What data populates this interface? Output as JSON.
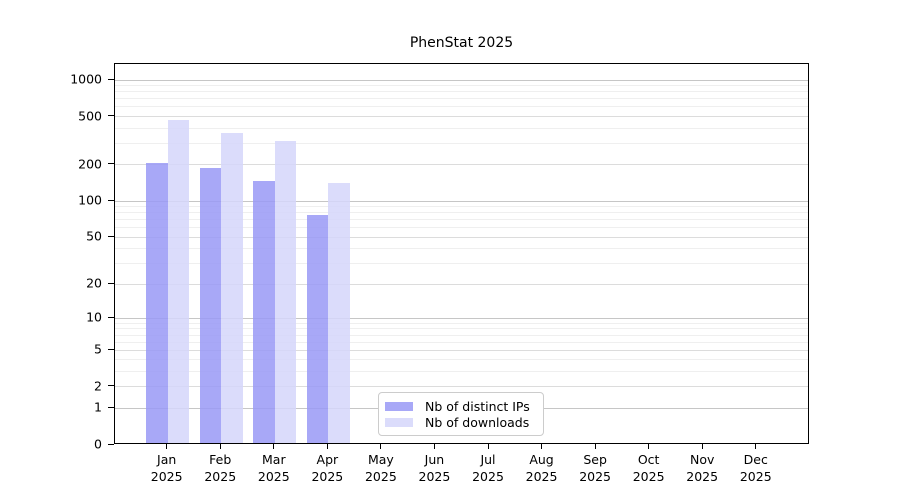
{
  "chart_data": {
    "type": "bar",
    "title": "PhenStat 2025",
    "year_label": "2025",
    "months": [
      "Jan",
      "Feb",
      "Mar",
      "Apr",
      "May",
      "Jun",
      "Jul",
      "Aug",
      "Sep",
      "Oct",
      "Nov",
      "Dec"
    ],
    "y_scale": "log10(value+1)",
    "y_ticks": [
      0,
      1,
      2,
      5,
      10,
      20,
      50,
      100,
      200,
      500,
      1000
    ],
    "y_max": 1355,
    "grid": "horizontal-only",
    "legend_position": "bottom-center",
    "series": [
      {
        "key": "distinct-ips",
        "name": "Nb of distinct IPs",
        "color": "rgba(153,153,246,0.85)",
        "values": [
          200,
          180,
          142,
          74,
          null,
          null,
          null,
          null,
          null,
          null,
          null,
          null
        ]
      },
      {
        "key": "downloads",
        "name": "Nb of downloads",
        "color": "rgba(213,214,250,0.85)",
        "values": [
          455,
          350,
          305,
          137,
          null,
          null,
          null,
          null,
          null,
          null,
          null,
          null
        ]
      }
    ]
  },
  "colors": {
    "background": "#ffffff",
    "axis": "#000000",
    "text": "#000000",
    "grid_major": "#c6c6c6",
    "grid_mid": "#dcdcdc",
    "grid_minor": "#efefef",
    "legend_border": "#cccccc"
  }
}
